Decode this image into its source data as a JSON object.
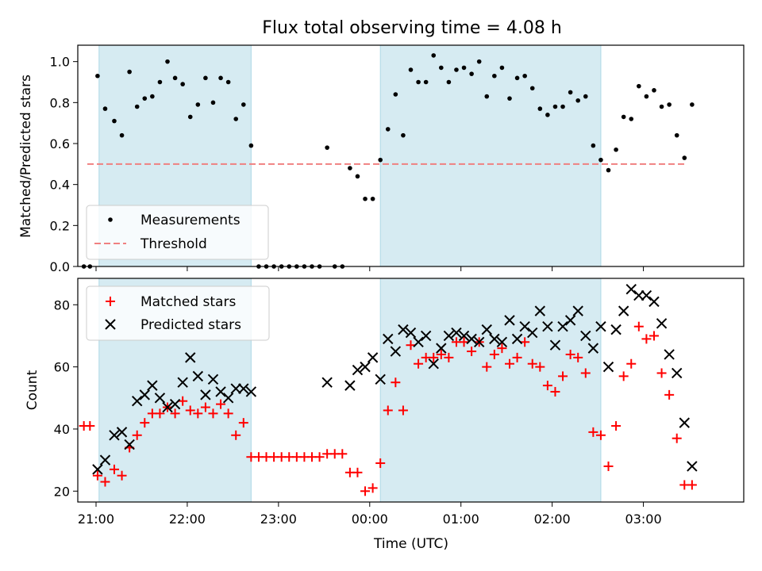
{
  "chart_data": [
    {
      "type": "scatter",
      "title": "Flux total observing time = 4.08 h",
      "ylabel": "Matched/Predicted stars",
      "xlabel": "",
      "xlim": [
        "20:48",
        "04:06"
      ],
      "ylim": [
        0,
        1.08
      ],
      "yticks": [
        "0.0",
        "0.2",
        "0.4",
        "0.6",
        "0.8",
        "1.0"
      ],
      "shaded_intervals": [
        [
          "21:02",
          "22:42"
        ],
        [
          "00:07",
          "02:32"
        ]
      ],
      "legend": {
        "position": "lower-left",
        "entries": [
          "Measurements",
          "Threshold"
        ]
      },
      "threshold": {
        "name": "Threshold",
        "value": 0.5,
        "x_range": [
          "20:48",
          "03:28"
        ],
        "color": "#f08080"
      },
      "series": [
        {
          "name": "Measurements",
          "color": "#000000",
          "points": [
            [
              "20:52",
              0.0
            ],
            [
              "20:56",
              0.0
            ],
            [
              "21:01",
              0.93
            ],
            [
              "21:06",
              0.77
            ],
            [
              "21:12",
              0.71
            ],
            [
              "21:17",
              0.64
            ],
            [
              "21:22",
              0.95
            ],
            [
              "21:27",
              0.78
            ],
            [
              "21:32",
              0.82
            ],
            [
              "21:37",
              0.83
            ],
            [
              "21:42",
              0.9
            ],
            [
              "21:47",
              1.0
            ],
            [
              "21:52",
              0.92
            ],
            [
              "21:57",
              0.89
            ],
            [
              "22:02",
              0.73
            ],
            [
              "22:07",
              0.79
            ],
            [
              "22:12",
              0.92
            ],
            [
              "22:17",
              0.8
            ],
            [
              "22:22",
              0.92
            ],
            [
              "22:27",
              0.9
            ],
            [
              "22:32",
              0.72
            ],
            [
              "22:37",
              0.79
            ],
            [
              "22:42",
              0.59
            ],
            [
              "22:47",
              0.0
            ],
            [
              "22:52",
              0.0
            ],
            [
              "22:57",
              0.0
            ],
            [
              "23:02",
              0.0
            ],
            [
              "23:07",
              0.0
            ],
            [
              "23:12",
              0.0
            ],
            [
              "23:17",
              0.0
            ],
            [
              "23:22",
              0.0
            ],
            [
              "23:27",
              0.0
            ],
            [
              "23:32",
              0.58
            ],
            [
              "23:37",
              0.0
            ],
            [
              "23:42",
              0.0
            ],
            [
              "23:47",
              0.48
            ],
            [
              "23:52",
              0.44
            ],
            [
              "23:57",
              0.33
            ],
            [
              "00:02",
              0.33
            ],
            [
              "00:07",
              0.52
            ],
            [
              "00:12",
              0.67
            ],
            [
              "00:17",
              0.84
            ],
            [
              "00:22",
              0.64
            ],
            [
              "00:27",
              0.96
            ],
            [
              "00:32",
              0.9
            ],
            [
              "00:37",
              0.9
            ],
            [
              "00:42",
              1.03
            ],
            [
              "00:47",
              0.97
            ],
            [
              "00:52",
              0.9
            ],
            [
              "00:57",
              0.96
            ],
            [
              "01:02",
              0.97
            ],
            [
              "01:07",
              0.94
            ],
            [
              "01:12",
              1.0
            ],
            [
              "01:17",
              0.83
            ],
            [
              "01:22",
              0.93
            ],
            [
              "01:27",
              0.97
            ],
            [
              "01:32",
              0.82
            ],
            [
              "01:37",
              0.92
            ],
            [
              "01:42",
              0.93
            ],
            [
              "01:47",
              0.87
            ],
            [
              "01:52",
              0.77
            ],
            [
              "01:57",
              0.74
            ],
            [
              "02:02",
              0.78
            ],
            [
              "02:07",
              0.78
            ],
            [
              "02:12",
              0.85
            ],
            [
              "02:17",
              0.81
            ],
            [
              "02:22",
              0.83
            ],
            [
              "02:27",
              0.59
            ],
            [
              "02:32",
              0.52
            ],
            [
              "02:37",
              0.47
            ],
            [
              "02:42",
              0.57
            ],
            [
              "02:47",
              0.73
            ],
            [
              "02:52",
              0.72
            ],
            [
              "02:57",
              0.88
            ],
            [
              "03:02",
              0.83
            ],
            [
              "03:07",
              0.86
            ],
            [
              "03:12",
              0.78
            ],
            [
              "03:17",
              0.79
            ],
            [
              "03:22",
              0.64
            ],
            [
              "03:27",
              0.53
            ],
            [
              "03:32",
              0.79
            ]
          ]
        }
      ]
    },
    {
      "type": "scatter",
      "title": "",
      "ylabel": "Count",
      "xlabel": "Time (UTC)",
      "xlim": [
        "20:48",
        "04:06"
      ],
      "ylim": [
        16.5,
        88.5
      ],
      "yticks": [
        "20",
        "40",
        "60",
        "80"
      ],
      "xticks": [
        "21:00",
        "22:00",
        "23:00",
        "00:00",
        "01:00",
        "02:00",
        "03:00"
      ],
      "shaded_intervals": [
        [
          "21:02",
          "22:42"
        ],
        [
          "00:07",
          "02:32"
        ]
      ],
      "legend": {
        "position": "upper-left",
        "entries": [
          "Matched stars",
          "Predicted stars"
        ]
      },
      "series": [
        {
          "name": "Matched stars",
          "marker": "plus",
          "color": "#ff0000",
          "points": [
            [
              "20:52",
              41
            ],
            [
              "20:56",
              41
            ],
            [
              "21:01",
              25
            ],
            [
              "21:06",
              23
            ],
            [
              "21:12",
              27
            ],
            [
              "21:17",
              25
            ],
            [
              "21:22",
              34
            ],
            [
              "21:27",
              38
            ],
            [
              "21:32",
              42
            ],
            [
              "21:37",
              45
            ],
            [
              "21:42",
              45
            ],
            [
              "21:47",
              47
            ],
            [
              "21:52",
              45
            ],
            [
              "21:57",
              49
            ],
            [
              "22:02",
              46
            ],
            [
              "22:07",
              45
            ],
            [
              "22:12",
              47
            ],
            [
              "22:17",
              45
            ],
            [
              "22:22",
              48
            ],
            [
              "22:27",
              45
            ],
            [
              "22:32",
              38
            ],
            [
              "22:37",
              42
            ],
            [
              "22:42",
              31
            ],
            [
              "22:47",
              31
            ],
            [
              "22:52",
              31
            ],
            [
              "22:57",
              31
            ],
            [
              "23:02",
              31
            ],
            [
              "23:07",
              31
            ],
            [
              "23:12",
              31
            ],
            [
              "23:17",
              31
            ],
            [
              "23:22",
              31
            ],
            [
              "23:27",
              31
            ],
            [
              "23:32",
              32
            ],
            [
              "23:37",
              32
            ],
            [
              "23:42",
              32
            ],
            [
              "23:47",
              26
            ],
            [
              "23:52",
              26
            ],
            [
              "23:57",
              20
            ],
            [
              "00:02",
              21
            ],
            [
              "00:07",
              29
            ],
            [
              "00:12",
              46
            ],
            [
              "00:17",
              55
            ],
            [
              "00:22",
              46
            ],
            [
              "00:27",
              67
            ],
            [
              "00:32",
              61
            ],
            [
              "00:37",
              63
            ],
            [
              "00:42",
              63
            ],
            [
              "00:47",
              64
            ],
            [
              "00:52",
              63
            ],
            [
              "00:57",
              68
            ],
            [
              "01:02",
              68
            ],
            [
              "01:07",
              65
            ],
            [
              "01:12",
              68
            ],
            [
              "01:17",
              60
            ],
            [
              "01:22",
              64
            ],
            [
              "01:27",
              66
            ],
            [
              "01:32",
              61
            ],
            [
              "01:37",
              63
            ],
            [
              "01:42",
              68
            ],
            [
              "01:47",
              61
            ],
            [
              "01:52",
              60
            ],
            [
              "01:57",
              54
            ],
            [
              "02:02",
              52
            ],
            [
              "02:07",
              57
            ],
            [
              "02:12",
              64
            ],
            [
              "02:17",
              63
            ],
            [
              "02:22",
              58
            ],
            [
              "02:27",
              39
            ],
            [
              "02:32",
              38
            ],
            [
              "02:37",
              28
            ],
            [
              "02:42",
              41
            ],
            [
              "02:47",
              57
            ],
            [
              "02:52",
              61
            ],
            [
              "02:57",
              73
            ],
            [
              "03:02",
              69
            ],
            [
              "03:07",
              70
            ],
            [
              "03:12",
              58
            ],
            [
              "03:17",
              51
            ],
            [
              "03:22",
              37
            ],
            [
              "03:27",
              22
            ],
            [
              "03:32",
              22
            ]
          ]
        },
        {
          "name": "Predicted stars",
          "marker": "x",
          "color": "#000000",
          "points": [
            [
              "21:01",
              27
            ],
            [
              "21:06",
              30
            ],
            [
              "21:12",
              38
            ],
            [
              "21:17",
              39
            ],
            [
              "21:22",
              35
            ],
            [
              "21:27",
              49
            ],
            [
              "21:32",
              51
            ],
            [
              "21:37",
              54
            ],
            [
              "21:42",
              50
            ],
            [
              "21:47",
              47
            ],
            [
              "21:52",
              48
            ],
            [
              "21:57",
              55
            ],
            [
              "22:02",
              63
            ],
            [
              "22:07",
              57
            ],
            [
              "22:12",
              51
            ],
            [
              "22:17",
              56
            ],
            [
              "22:22",
              52
            ],
            [
              "22:27",
              50
            ],
            [
              "22:32",
              53
            ],
            [
              "22:37",
              53
            ],
            [
              "22:42",
              52
            ],
            [
              "23:32",
              55
            ],
            [
              "23:47",
              54
            ],
            [
              "23:52",
              59
            ],
            [
              "23:57",
              60
            ],
            [
              "00:02",
              63
            ],
            [
              "00:07",
              56
            ],
            [
              "00:12",
              69
            ],
            [
              "00:17",
              65
            ],
            [
              "00:22",
              72
            ],
            [
              "00:27",
              71
            ],
            [
              "00:32",
              68
            ],
            [
              "00:37",
              70
            ],
            [
              "00:42",
              61
            ],
            [
              "00:47",
              66
            ],
            [
              "00:52",
              70
            ],
            [
              "00:57",
              71
            ],
            [
              "01:02",
              70
            ],
            [
              "01:07",
              69
            ],
            [
              "01:12",
              68
            ],
            [
              "01:17",
              72
            ],
            [
              "01:22",
              69
            ],
            [
              "01:27",
              68
            ],
            [
              "01:32",
              75
            ],
            [
              "01:37",
              69
            ],
            [
              "01:42",
              73
            ],
            [
              "01:47",
              71
            ],
            [
              "01:52",
              78
            ],
            [
              "01:57",
              73
            ],
            [
              "02:02",
              67
            ],
            [
              "02:07",
              73
            ],
            [
              "02:12",
              75
            ],
            [
              "02:17",
              78
            ],
            [
              "02:22",
              70
            ],
            [
              "02:27",
              66
            ],
            [
              "02:32",
              73
            ],
            [
              "02:37",
              60
            ],
            [
              "02:42",
              72
            ],
            [
              "02:47",
              78
            ],
            [
              "02:52",
              85
            ],
            [
              "02:57",
              83
            ],
            [
              "03:02",
              83
            ],
            [
              "03:07",
              81
            ],
            [
              "03:12",
              74
            ],
            [
              "03:17",
              64
            ],
            [
              "03:22",
              58
            ],
            [
              "03:27",
              42
            ],
            [
              "03:32",
              28
            ]
          ]
        }
      ]
    }
  ]
}
